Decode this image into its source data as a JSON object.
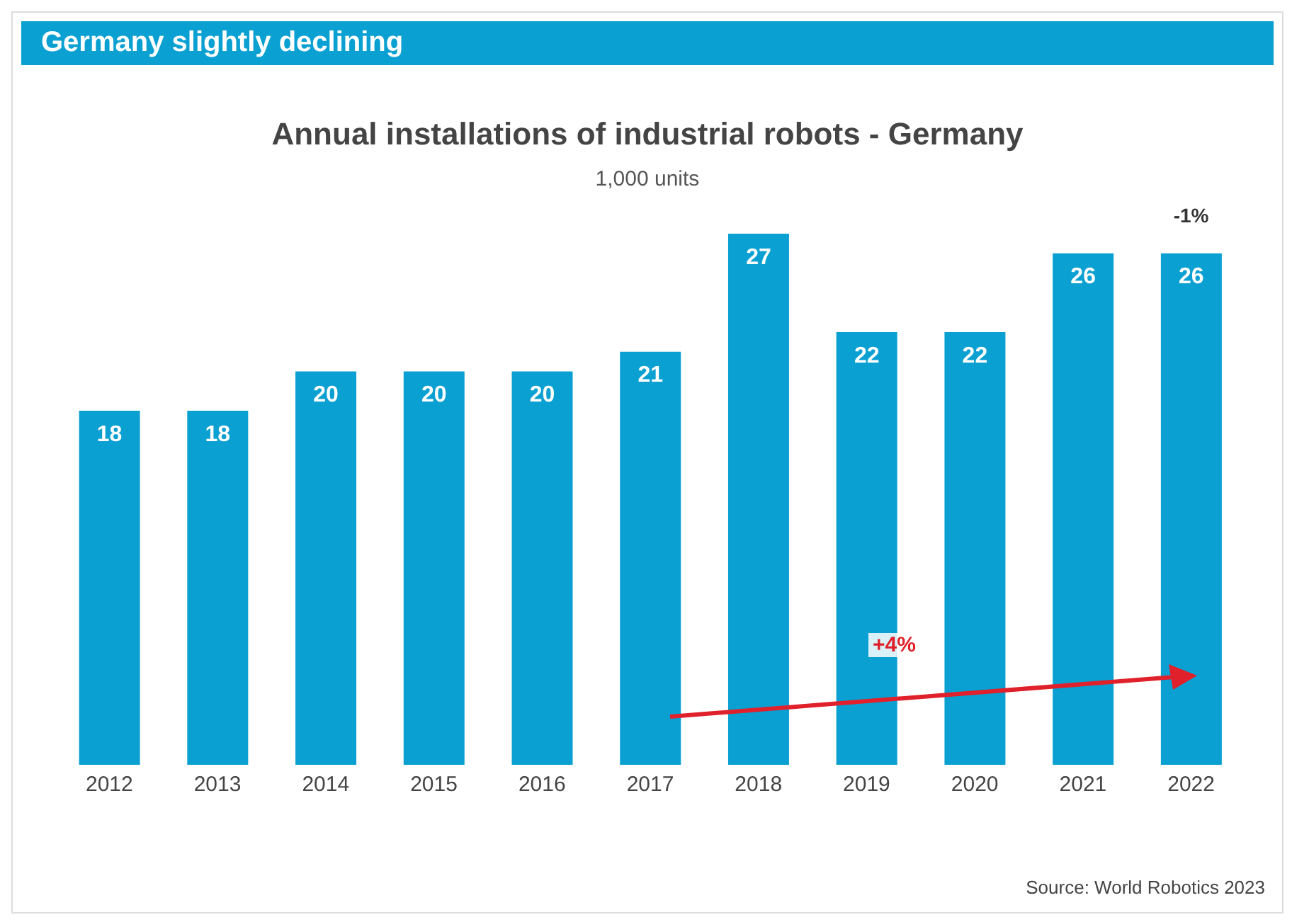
{
  "chart_data": {
    "type": "bar",
    "title": "Annual installations of industrial robots - Germany",
    "subtitle": "1,000 units",
    "categories": [
      "2012",
      "2013",
      "2014",
      "2015",
      "2016",
      "2017",
      "2018",
      "2019",
      "2020",
      "2021",
      "2022"
    ],
    "values": [
      18,
      18,
      20,
      20,
      20,
      21,
      27,
      22,
      22,
      26,
      26
    ],
    "color": "#0aa0d2",
    "tick_labels": "x",
    "data_labels": true,
    "grid": false,
    "legend": false,
    "annotations": [
      "Germany slightly declining",
      {
        "text": "-1%",
        "x": "2022",
        "y": 26
      },
      "+4%",
      "Source: World Robotics 2023"
    ]
  }
}
